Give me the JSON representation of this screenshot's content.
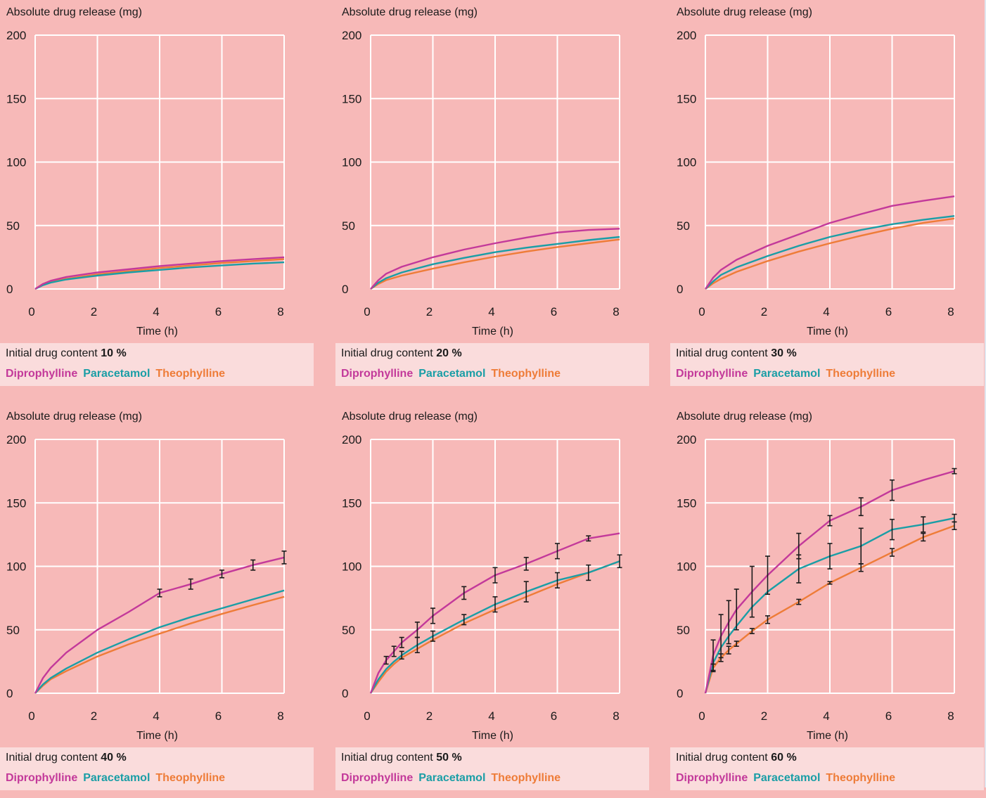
{
  "colors": {
    "background": "#f7b9b8",
    "caption_background": "#fadcdc",
    "grid": "#ffffff",
    "diprophylline": "#c3399a",
    "paracetamol": "#1a9ea6",
    "theophylline": "#ee7c38",
    "error_bar": "#1a1a1a"
  },
  "legend": [
    {
      "name": "Diprophylline",
      "color": "#c3399a"
    },
    {
      "name": "Paracetamol",
      "color": "#1a9ea6"
    },
    {
      "name": "Theophylline",
      "color": "#ee7c38"
    }
  ],
  "caption_prefix": "Initial drug content",
  "chart_data": [
    {
      "type": "line",
      "ylabel": "Absolute drug release (mg)",
      "xlabel": "Time (h)",
      "content": "10 %",
      "xlim": [
        0,
        8
      ],
      "ylim": [
        0,
        200
      ],
      "xticks": [
        0,
        2,
        4,
        6,
        8
      ],
      "yticks": [
        0,
        50,
        100,
        150,
        200
      ],
      "grid": true,
      "series": [
        {
          "name": "Diprophylline",
          "x": [
            0,
            0.25,
            0.5,
            1,
            2,
            3,
            4,
            5,
            6,
            7,
            8
          ],
          "y": [
            0,
            4,
            6.5,
            9.5,
            13,
            15.5,
            18,
            20,
            22,
            23.5,
            25
          ]
        },
        {
          "name": "Paracetamol",
          "x": [
            0,
            0.25,
            0.5,
            1,
            2,
            3,
            4,
            5,
            6,
            7,
            8
          ],
          "y": [
            0,
            3,
            5,
            7.5,
            10.5,
            13,
            15,
            17,
            18.5,
            20,
            21
          ]
        },
        {
          "name": "Theophylline",
          "x": [
            0,
            0.25,
            0.5,
            1,
            2,
            3,
            4,
            5,
            6,
            7,
            8
          ],
          "y": [
            0,
            3.5,
            5.5,
            8,
            11.5,
            14,
            16.5,
            18.5,
            20.5,
            22,
            23.5
          ]
        }
      ]
    },
    {
      "type": "line",
      "ylabel": "Absolute drug release (mg)",
      "xlabel": "Time (h)",
      "content": "20 %",
      "xlim": [
        0,
        8
      ],
      "ylim": [
        0,
        200
      ],
      "xticks": [
        0,
        2,
        4,
        6,
        8
      ],
      "yticks": [
        0,
        50,
        100,
        150,
        200
      ],
      "grid": true,
      "series": [
        {
          "name": "Diprophylline",
          "x": [
            0,
            0.25,
            0.5,
            1,
            2,
            3,
            4,
            5,
            6,
            7,
            8
          ],
          "y": [
            0,
            7,
            12,
            17.5,
            25,
            31,
            36,
            40.5,
            44.5,
            46.5,
            47.5
          ]
        },
        {
          "name": "Paracetamol",
          "x": [
            0,
            0.25,
            0.5,
            1,
            2,
            3,
            4,
            5,
            6,
            7,
            8
          ],
          "y": [
            0,
            5,
            8.5,
            13,
            19.5,
            24.5,
            29,
            32.5,
            35.5,
            38.5,
            41
          ]
        },
        {
          "name": "Theophylline",
          "x": [
            0,
            0.25,
            0.5,
            1,
            2,
            3,
            4,
            5,
            6,
            7,
            8
          ],
          "y": [
            0,
            4,
            7,
            10.5,
            16,
            21,
            25.5,
            29.5,
            33,
            36,
            39
          ]
        }
      ]
    },
    {
      "type": "line",
      "ylabel": "Absolute drug release (mg)",
      "xlabel": "Time (h)",
      "content": "30 %",
      "xlim": [
        0,
        8
      ],
      "ylim": [
        0,
        200
      ],
      "xticks": [
        0,
        2,
        4,
        6,
        8
      ],
      "yticks": [
        0,
        50,
        100,
        150,
        200
      ],
      "grid": true,
      "series": [
        {
          "name": "Diprophylline",
          "x": [
            0,
            0.25,
            0.5,
            1,
            2,
            3,
            4,
            5,
            6,
            7,
            8
          ],
          "y": [
            0,
            9,
            15,
            23,
            34,
            43,
            52,
            59,
            65.5,
            69.5,
            73
          ]
        },
        {
          "name": "Paracetamol",
          "x": [
            0,
            0.25,
            0.5,
            1,
            2,
            3,
            4,
            5,
            6,
            7,
            8
          ],
          "y": [
            0,
            6,
            11,
            17,
            26,
            34,
            41,
            46.5,
            51,
            54.5,
            57.5
          ]
        },
        {
          "name": "Theophylline",
          "x": [
            0,
            0.25,
            0.5,
            1,
            2,
            3,
            4,
            5,
            6,
            7,
            8
          ],
          "y": [
            0,
            4.5,
            8,
            13.5,
            22,
            29.5,
            36,
            42,
            47.5,
            52,
            55.5
          ]
        }
      ]
    },
    {
      "type": "line",
      "ylabel": "Absolute drug release (mg)",
      "xlabel": "Time (h)",
      "content": "40 %",
      "xlim": [
        0,
        8
      ],
      "ylim": [
        0,
        200
      ],
      "xticks": [
        0,
        2,
        4,
        6,
        8
      ],
      "yticks": [
        0,
        50,
        100,
        150,
        200
      ],
      "grid": true,
      "series": [
        {
          "name": "Diprophylline",
          "x": [
            0,
            0.25,
            0.5,
            1,
            2,
            3,
            4,
            5,
            6,
            7,
            8
          ],
          "y": [
            0,
            12,
            20,
            32,
            50,
            64,
            79,
            86,
            94,
            101,
            107
          ],
          "errors": [
            null,
            null,
            null,
            null,
            null,
            null,
            3,
            4,
            3,
            4,
            5
          ]
        },
        {
          "name": "Paracetamol",
          "x": [
            0,
            0.25,
            0.5,
            1,
            2,
            3,
            4,
            5,
            6,
            7,
            8
          ],
          "y": [
            0,
            7,
            12,
            19.5,
            32,
            42.5,
            52,
            60,
            67,
            74,
            81
          ]
        },
        {
          "name": "Theophylline",
          "x": [
            0,
            0.25,
            0.5,
            1,
            2,
            3,
            4,
            5,
            6,
            7,
            8
          ],
          "y": [
            0,
            6,
            11,
            17.5,
            29,
            38.5,
            47,
            55,
            62.5,
            69.5,
            76
          ]
        }
      ]
    },
    {
      "type": "line",
      "ylabel": "Absolute drug release (mg)",
      "xlabel": "Time (h)",
      "content": "50 %",
      "xlim": [
        0,
        8
      ],
      "ylim": [
        0,
        200
      ],
      "xticks": [
        0,
        2,
        4,
        6,
        8
      ],
      "yticks": [
        0,
        50,
        100,
        150,
        200
      ],
      "grid": true,
      "series": [
        {
          "name": "Diprophylline",
          "x": [
            0,
            0.25,
            0.5,
            0.75,
            1,
            1.5,
            2,
            3,
            4,
            5,
            6,
            7,
            8
          ],
          "y": [
            0,
            16,
            26,
            33,
            40,
            50,
            61,
            79,
            93,
            102,
            112,
            122,
            126
          ],
          "errors": [
            null,
            null,
            3,
            4,
            4,
            6,
            6,
            5,
            6,
            5,
            6,
            2,
            null
          ]
        },
        {
          "name": "Paracetamol",
          "x": [
            0,
            0.25,
            0.5,
            0.75,
            1,
            1.5,
            2,
            3,
            4,
            5,
            6,
            7,
            8
          ],
          "y": [
            0,
            11,
            19,
            25,
            30,
            38,
            45,
            58,
            70,
            80,
            89,
            95,
            104
          ],
          "errors": [
            null,
            null,
            null,
            null,
            3,
            6,
            4,
            4,
            6,
            8,
            6,
            6,
            5
          ]
        },
        {
          "name": "Theophylline",
          "x": [
            0,
            0.25,
            0.5,
            0.75,
            1,
            1.5,
            2,
            3,
            4,
            5,
            6,
            7,
            8
          ],
          "y": [
            0,
            9,
            17,
            23,
            28,
            35,
            42,
            55,
            66,
            76,
            86,
            95,
            104
          ]
        }
      ]
    },
    {
      "type": "line",
      "ylabel": "Absolute drug release (mg)",
      "xlabel": "Time (h)",
      "content": "60 %",
      "xlim": [
        0,
        8
      ],
      "ylim": [
        0,
        200
      ],
      "xticks": [
        0,
        2,
        4,
        6,
        8
      ],
      "yticks": [
        0,
        50,
        100,
        150,
        200
      ],
      "grid": true,
      "series": [
        {
          "name": "Diprophylline",
          "x": [
            0,
            0.25,
            0.5,
            0.75,
            1,
            1.5,
            2,
            3,
            4,
            5,
            6,
            7,
            8
          ],
          "y": [
            0,
            30,
            45,
            56,
            66,
            80,
            93,
            116,
            136,
            147,
            160,
            168,
            175
          ],
          "errors": [
            null,
            12,
            17,
            17,
            16,
            20,
            15,
            10,
            4,
            7,
            8,
            null,
            2
          ]
        },
        {
          "name": "Paracetamol",
          "x": [
            0,
            0.25,
            0.5,
            0.75,
            1,
            1.5,
            2,
            3,
            4,
            5,
            6,
            7,
            8
          ],
          "y": [
            0,
            24,
            36,
            45,
            53,
            68,
            80,
            98,
            108,
            116,
            129,
            133,
            138
          ],
          "errors": [
            null,
            null,
            null,
            null,
            null,
            null,
            null,
            11,
            10,
            14,
            8,
            6,
            3
          ]
        },
        {
          "name": "Theophylline",
          "x": [
            0,
            0.25,
            0.5,
            0.75,
            1,
            1.5,
            2,
            3,
            4,
            5,
            6,
            7,
            8
          ],
          "y": [
            0,
            20,
            28,
            34,
            39,
            49,
            58,
            72,
            87,
            99,
            111,
            123,
            132
          ],
          "errors": [
            null,
            3,
            3,
            3,
            2,
            2,
            3,
            2,
            1,
            3,
            3,
            3,
            3
          ]
        }
      ]
    }
  ]
}
